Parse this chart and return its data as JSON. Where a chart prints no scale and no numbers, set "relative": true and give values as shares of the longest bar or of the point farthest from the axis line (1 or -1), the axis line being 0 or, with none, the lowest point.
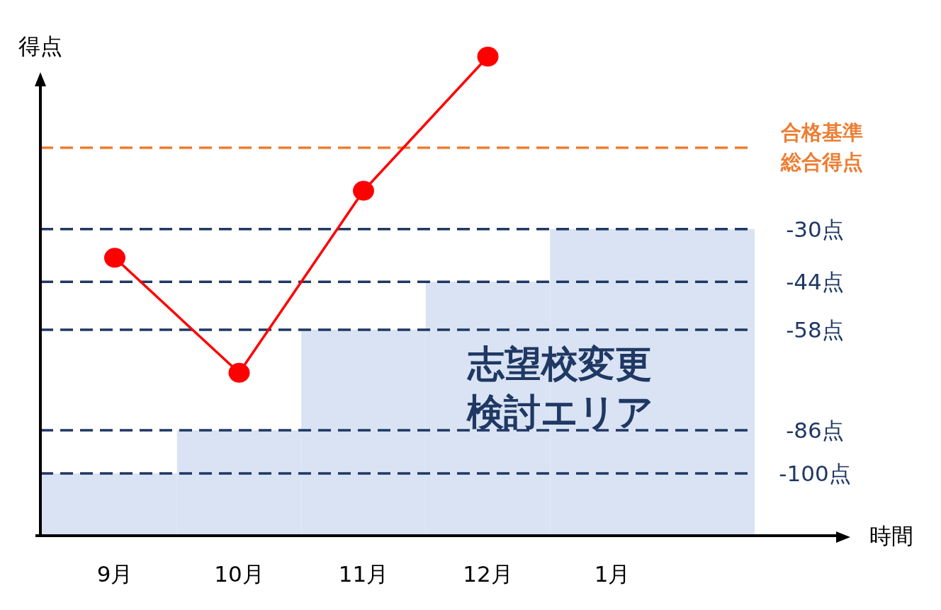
{
  "chart_data": {
    "type": "line",
    "relative": true,
    "ylabel": "得点",
    "categories": [
      "9月",
      "10月",
      "11月",
      "12月",
      "1月"
    ],
    "series": [
      {
        "type": "bar",
        "color": "#dae3f3",
        "values": [
          0.13,
          0.22,
          0.43,
          0.53,
          0.64
        ]
      },
      {
        "color": "#ff0000",
        "values": [
          0.58,
          0.34,
          0.72,
          1,
          null
        ]
      }
    ],
    "marker": "circle",
    "line_style": "solid",
    "ref_lines": [
      {
        "axis": "y",
        "value": 0.81,
        "label": "合格基準総合得点",
        "color": "#ed7d31",
        "line_style": "dashed"
      },
      {
        "axis": "y",
        "value": 0.64,
        "label": "-30点",
        "color": "#1f3864",
        "line_style": "dashed"
      },
      {
        "axis": "y",
        "value": 0.53,
        "label": "-44点",
        "color": "#1f3864",
        "line_style": "dashed"
      },
      {
        "axis": "y",
        "value": 0.43,
        "label": "-58点",
        "color": "#1f3864",
        "line_style": "dashed"
      },
      {
        "axis": "y",
        "value": 0.22,
        "label": "-86点",
        "color": "#1f3864",
        "line_style": "dashed"
      },
      {
        "axis": "y",
        "value": 0.13,
        "label": "-100点",
        "color": "#1f3864",
        "line_style": "dashed"
      }
    ],
    "annotations": [
      "志望校変更検討エリア",
      "時間"
    ]
  }
}
